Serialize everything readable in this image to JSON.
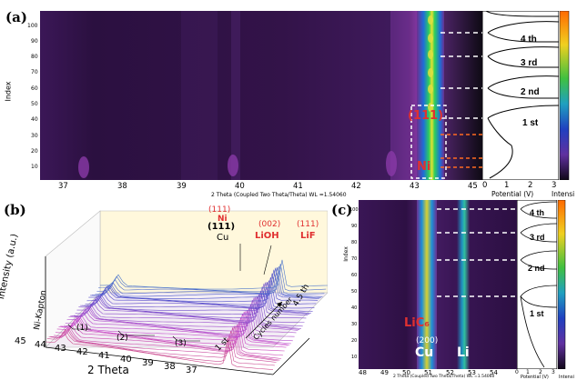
{
  "panels": {
    "a": {
      "label": "(a)",
      "y_axis_label": "Index",
      "y_ticks": [
        "100",
        "90",
        "80",
        "70",
        "60",
        "50",
        "40",
        "30",
        "20",
        "10"
      ],
      "x_ticks": [
        "37",
        "38",
        "39",
        "40",
        "41",
        "42",
        "43",
        "44",
        "45"
      ],
      "x_axis_label": "2 Theta (Coupled Two Theta/Theta) WL =1.54060",
      "annotations": {
        "peak": "(111)",
        "element": "Ni"
      },
      "potential_ticks": [
        "0",
        "1",
        "2",
        "3"
      ],
      "potential_label": "Potential (V)",
      "cycles": [
        "4 th",
        "3 rd",
        "2 nd",
        "1 st"
      ],
      "colorbar_label": "Intensi"
    },
    "b": {
      "label": "(b)",
      "y_axis_label": "Intensity (a.u.)",
      "x_axis_label": "2 Theta",
      "x_ticks": [
        "45",
        "44",
        "43",
        "42",
        "41",
        "40",
        "39",
        "38",
        "37"
      ],
      "annotations": {
        "ni_peak": "(111)",
        "ni": "Ni",
        "cu_peak": "(111)",
        "cu": "Cu",
        "lioh_peak": "(002)",
        "lioh": "LiOH",
        "lif_peak": "(111)",
        "lif": "LiF",
        "ni_kapton": "Ni-Kapton",
        "region1": "(1)",
        "region2": "(2)",
        "region3": "(3)",
        "first": "1 st",
        "last": "4.5 th",
        "cycles_number": "Cycles number"
      }
    },
    "c": {
      "label": "(c)",
      "y_axis_label": "Index",
      "y_ticks": [
        "100",
        "90",
        "80",
        "70",
        "60",
        "50",
        "40",
        "30",
        "20",
        "10"
      ],
      "x_ticks": [
        "48",
        "49",
        "50",
        "51",
        "52",
        "53",
        "54"
      ],
      "x_axis_label": "2 Theta (Coupled Two Theta/Theta) WL =1.54060",
      "annotations": {
        "lic6": "LiC₆",
        "cu_peak": "(200)",
        "cu": "Cu",
        "li": "Li"
      },
      "potential_ticks": [
        "0",
        "1",
        "2",
        "3"
      ],
      "potential_label": "Potential (V)",
      "cycles": [
        "4 th",
        "3 rd",
        "2 nd",
        "1 st"
      ],
      "colorbar_label": "Intensi"
    }
  },
  "colors": {
    "background": "#2a0f3e",
    "peak_green": "#20c040",
    "accent_red": "#e03030",
    "dashed_white": "#ffffff",
    "dashed_orange": "#ff6a20"
  }
}
